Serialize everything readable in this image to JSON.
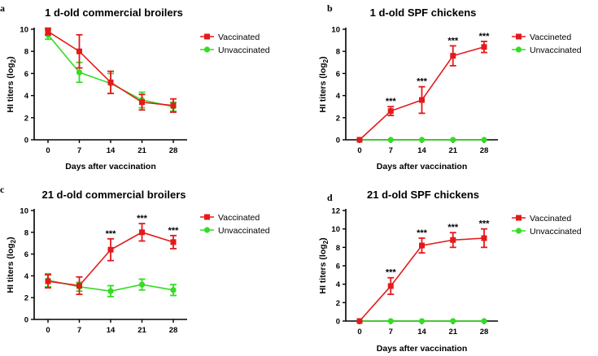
{
  "colors": {
    "vaccinated": "#e31a1c",
    "unvaccinated": "#33dd22"
  },
  "chart_data": [
    {
      "panel_label": "a",
      "type": "line",
      "title": "1 d-old commercial broilers",
      "xlabel": "Days after vaccination",
      "ylabel": "HI titers (log",
      "ylabel_sub": "2",
      "ylabel_end": ")",
      "x": [
        0,
        7,
        14,
        21,
        28
      ],
      "xticks": [
        "0",
        "7",
        "14",
        "21",
        "28"
      ],
      "yticks": [
        "0",
        "2",
        "4",
        "6",
        "8",
        "10"
      ],
      "ylim": [
        0,
        10
      ],
      "legend_position": "top-right",
      "significance": [
        "",
        "",
        "",
        "",
        ""
      ],
      "series": [
        {
          "name": "Vaccinated",
          "color": "#e31a1c",
          "marker": "square",
          "values": [
            9.8,
            8.0,
            5.2,
            3.4,
            3.1
          ],
          "error": [
            0.3,
            1.5,
            1.0,
            0.7,
            0.6
          ]
        },
        {
          "name": "Unvaccinated",
          "color": "#33dd22",
          "marker": "circle",
          "values": [
            9.5,
            6.1,
            5.1,
            3.6,
            3.0
          ],
          "error": [
            0.4,
            0.9,
            0.9,
            0.7,
            0.4
          ]
        }
      ]
    },
    {
      "panel_label": "b",
      "type": "line",
      "title": "1 d-old SPF chickens",
      "xlabel": "Days after vaccination",
      "ylabel": "HI titers (log",
      "ylabel_sub": "2",
      "ylabel_end": ")",
      "x": [
        0,
        7,
        14,
        21,
        28
      ],
      "xticks": [
        "0",
        "7",
        "14",
        "21",
        "28"
      ],
      "yticks": [
        "0",
        "2",
        "4",
        "6",
        "8",
        "10"
      ],
      "ylim": [
        0,
        10
      ],
      "legend_position": "top-right",
      "significance": [
        "",
        "***",
        "***",
        "***",
        "***"
      ],
      "series": [
        {
          "name": "Vaccineted",
          "color": "#e31a1c",
          "marker": "square",
          "values": [
            0,
            2.6,
            3.6,
            7.6,
            8.4
          ],
          "error": [
            0,
            0.4,
            1.2,
            0.9,
            0.5
          ]
        },
        {
          "name": "Unvaccinated",
          "color": "#33dd22",
          "marker": "circle",
          "values": [
            0,
            0,
            0,
            0,
            0
          ],
          "error": [
            0,
            0,
            0,
            0,
            0
          ]
        }
      ]
    },
    {
      "panel_label": "c",
      "type": "line",
      "title": "21 d-old commercial broilers",
      "xlabel": "",
      "ylabel": "HI titers (log",
      "ylabel_sub": "2",
      "ylabel_end": ")",
      "x": [
        0,
        7,
        14,
        21,
        28
      ],
      "xticks": [
        "0",
        "7",
        "14",
        "21",
        "28"
      ],
      "yticks": [
        "0",
        "2",
        "4",
        "6",
        "8",
        "10"
      ],
      "ylim": [
        0,
        10
      ],
      "legend_position": "top-right",
      "significance": [
        "",
        "",
        "***",
        "***",
        "***"
      ],
      "series": [
        {
          "name": "Vaccinated",
          "color": "#e31a1c",
          "marker": "square",
          "values": [
            3.5,
            3.1,
            6.4,
            8.0,
            7.1
          ],
          "error": [
            0.6,
            0.8,
            1.0,
            0.8,
            0.6
          ]
        },
        {
          "name": "Unvaccinated",
          "color": "#33dd22",
          "marker": "circle",
          "values": [
            3.6,
            3.0,
            2.6,
            3.2,
            2.7
          ],
          "error": [
            0.6,
            0.4,
            0.5,
            0.5,
            0.5
          ]
        }
      ]
    },
    {
      "panel_label": "d",
      "type": "line",
      "title": "21 d-old SPF chickens",
      "xlabel": "Days after vaccination",
      "ylabel": "HI titers (log",
      "ylabel_sub": "2",
      "ylabel_end": ")",
      "x": [
        0,
        7,
        14,
        21,
        28
      ],
      "xticks": [
        "0",
        "7",
        "14",
        "21",
        "28"
      ],
      "yticks": [
        "0",
        "2",
        "4",
        "6",
        "8",
        "10",
        "12"
      ],
      "ylim": [
        0,
        12
      ],
      "legend_position": "top-right",
      "significance": [
        "",
        "***",
        "***",
        "***",
        "***"
      ],
      "series": [
        {
          "name": "Vaccinated",
          "color": "#e31a1c",
          "marker": "square",
          "values": [
            0,
            3.8,
            8.2,
            8.8,
            9.0
          ],
          "error": [
            0,
            0.9,
            0.8,
            0.8,
            1.0
          ]
        },
        {
          "name": "Unvaccinated",
          "color": "#33dd22",
          "marker": "circle",
          "values": [
            0,
            0,
            0,
            0,
            0
          ],
          "error": [
            0,
            0,
            0,
            0,
            0
          ]
        }
      ]
    }
  ]
}
